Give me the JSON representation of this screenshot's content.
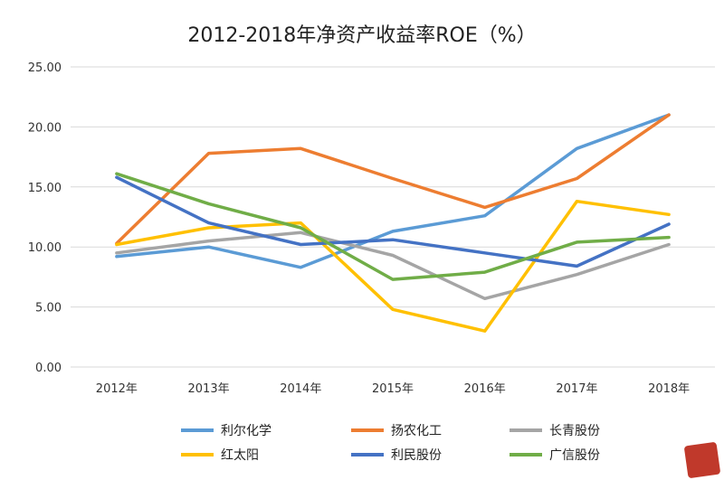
{
  "chart_data": {
    "type": "line",
    "title": "2012-2018年净资产收益率ROE（%）",
    "categories": [
      "2012年",
      "2013年",
      "2014年",
      "2015年",
      "2016年",
      "2017年",
      "2018年"
    ],
    "ylim": [
      0,
      25
    ],
    "yticks": [
      "0.00",
      "5.00",
      "10.00",
      "15.00",
      "20.00",
      "25.00"
    ],
    "grid": true,
    "legend_position": "bottom",
    "series": [
      {
        "name": "利尔化学",
        "color": "#5B9BD5",
        "values": [
          9.2,
          10.0,
          8.3,
          11.3,
          12.6,
          18.2,
          21.0
        ]
      },
      {
        "name": "扬农化工",
        "color": "#ED7D31",
        "values": [
          10.3,
          17.8,
          18.2,
          15.7,
          13.3,
          15.7,
          21.0
        ]
      },
      {
        "name": "长青股份",
        "color": "#A5A5A5",
        "values": [
          9.5,
          10.5,
          11.2,
          9.3,
          5.7,
          7.7,
          10.2
        ]
      },
      {
        "name": "红太阳",
        "color": "#FFC000",
        "values": [
          10.2,
          11.6,
          12.0,
          4.8,
          3.0,
          13.8,
          12.7
        ]
      },
      {
        "name": "利民股份",
        "color": "#4472C4",
        "values": [
          15.8,
          12.0,
          10.2,
          10.6,
          9.5,
          8.4,
          11.9
        ]
      },
      {
        "name": "广信股份",
        "color": "#70AD47",
        "values": [
          16.1,
          13.6,
          11.6,
          7.3,
          7.9,
          10.4,
          10.8
        ]
      }
    ]
  }
}
